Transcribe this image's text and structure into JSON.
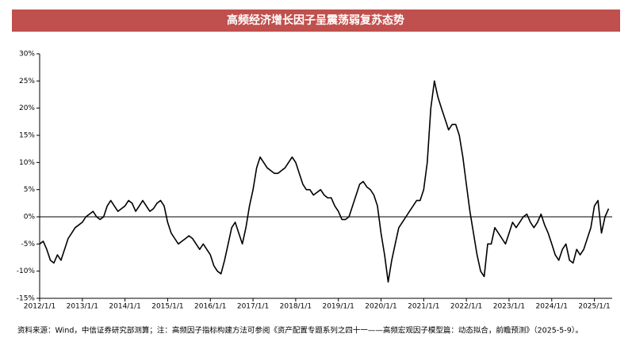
{
  "chart_data": {
    "type": "line",
    "title": "高频经济增长因子呈震荡弱复苏态势",
    "source": "资料来源：Wind，中信证券研究部测算；注：高频因子指标构建方法可参阅《资产配置专题系列之四十一——高频宏观因子模型篇：动态拟合，前瞻预测》（2025-5-9）。",
    "color": "#000000",
    "x": [
      "2012/1/1",
      "2012/2/1",
      "2012/3/1",
      "2012/4/1",
      "2012/5/1",
      "2012/6/1",
      "2012/7/1",
      "2012/8/1",
      "2012/9/1",
      "2012/10/1",
      "2012/11/1",
      "2012/12/1",
      "2013/1/1",
      "2013/2/1",
      "2013/3/1",
      "2013/4/1",
      "2013/5/1",
      "2013/6/1",
      "2013/7/1",
      "2013/8/1",
      "2013/9/1",
      "2013/10/1",
      "2013/11/1",
      "2013/12/1",
      "2014/1/1",
      "2014/2/1",
      "2014/3/1",
      "2014/4/1",
      "2014/5/1",
      "2014/6/1",
      "2014/7/1",
      "2014/8/1",
      "2014/9/1",
      "2014/10/1",
      "2014/11/1",
      "2014/12/1",
      "2015/1/1",
      "2015/2/1",
      "2015/3/1",
      "2015/4/1",
      "2015/5/1",
      "2015/6/1",
      "2015/7/1",
      "2015/8/1",
      "2015/9/1",
      "2015/10/1",
      "2015/11/1",
      "2015/12/1",
      "2016/1/1",
      "2016/2/1",
      "2016/3/1",
      "2016/4/1",
      "2016/5/1",
      "2016/6/1",
      "2016/7/1",
      "2016/8/1",
      "2016/9/1",
      "2016/10/1",
      "2016/11/1",
      "2016/12/1",
      "2017/1/1",
      "2017/2/1",
      "2017/3/1",
      "2017/4/1",
      "2017/5/1",
      "2017/6/1",
      "2017/7/1",
      "2017/8/1",
      "2017/9/1",
      "2017/10/1",
      "2017/11/1",
      "2017/12/1",
      "2018/1/1",
      "2018/2/1",
      "2018/3/1",
      "2018/4/1",
      "2018/5/1",
      "2018/6/1",
      "2018/7/1",
      "2018/8/1",
      "2018/9/1",
      "2018/10/1",
      "2018/11/1",
      "2018/12/1",
      "2019/1/1",
      "2019/2/1",
      "2019/3/1",
      "2019/4/1",
      "2019/5/1",
      "2019/6/1",
      "2019/7/1",
      "2019/8/1",
      "2019/9/1",
      "2019/10/1",
      "2019/11/1",
      "2019/12/1",
      "2020/1/1",
      "2020/2/1",
      "2020/3/1",
      "2020/4/1",
      "2020/5/1",
      "2020/6/1",
      "2020/7/1",
      "2020/8/1",
      "2020/9/1",
      "2020/10/1",
      "2020/11/1",
      "2020/12/1",
      "2021/1/1",
      "2021/2/1",
      "2021/3/1",
      "2021/4/1",
      "2021/5/1",
      "2021/6/1",
      "2021/7/1",
      "2021/8/1",
      "2021/9/1",
      "2021/10/1",
      "2021/11/1",
      "2021/12/1",
      "2022/1/1",
      "2022/2/1",
      "2022/3/1",
      "2022/4/1",
      "2022/5/1",
      "2022/6/1",
      "2022/7/1",
      "2022/8/1",
      "2022/9/1",
      "2022/10/1",
      "2022/11/1",
      "2022/12/1",
      "2023/1/1",
      "2023/2/1",
      "2023/3/1",
      "2023/4/1",
      "2023/5/1",
      "2023/6/1",
      "2023/7/1",
      "2023/8/1",
      "2023/9/1",
      "2023/10/1",
      "2023/11/1",
      "2023/12/1",
      "2024/1/1",
      "2024/2/1",
      "2024/3/1",
      "2024/4/1",
      "2024/5/1",
      "2024/6/1",
      "2024/7/1",
      "2024/8/1",
      "2024/9/1",
      "2024/10/1",
      "2024/11/1",
      "2024/12/1",
      "2025/1/1",
      "2025/2/1",
      "2025/3/1",
      "2025/4/1",
      "2025/5/1"
    ],
    "values": [
      -5,
      -4.5,
      -6,
      -8,
      -8.5,
      -7,
      -8,
      -6,
      -4,
      -3,
      -2,
      -1.5,
      -1,
      0,
      0.5,
      1,
      0,
      -0.5,
      0,
      2,
      3,
      2,
      1,
      1.5,
      2,
      3,
      2.5,
      1,
      2,
      3,
      2,
      1,
      1.5,
      2.5,
      3,
      2,
      -1,
      -3,
      -4,
      -5,
      -4.5,
      -4,
      -3.5,
      -4,
      -5,
      -6,
      -5,
      -6,
      -7,
      -9,
      -10,
      -10.5,
      -8,
      -5,
      -2,
      -1,
      -3,
      -5,
      -2,
      2,
      5,
      9,
      11,
      10,
      9,
      8.5,
      8,
      8,
      8.5,
      9,
      10,
      11,
      10,
      8,
      6,
      5,
      5,
      4,
      4.5,
      5,
      4,
      3.5,
      3.5,
      2,
      1,
      -0.5,
      -0.5,
      0,
      2,
      4,
      6,
      6.5,
      5.5,
      5,
      4,
      2,
      -3,
      -7,
      -12,
      -8,
      -5,
      -2,
      -1,
      0,
      1,
      2,
      3,
      3,
      5,
      10,
      20,
      25,
      22,
      20,
      18,
      16,
      17,
      17,
      15,
      11,
      6,
      1,
      -3,
      -7,
      -10,
      -11,
      -5,
      -5,
      -2,
      -3,
      -4,
      -5,
      -3,
      -1,
      -2,
      -1,
      0,
      0.5,
      -1,
      -2,
      -1,
      0.5,
      -1.5,
      -3,
      -5,
      -7,
      -8,
      -6,
      -5,
      -8,
      -8.5,
      -6,
      -7,
      -6,
      -4,
      -2,
      2,
      3,
      -3,
      0,
      1.5
    ],
    "xlim": [
      "2012/1/1",
      "2025/6/1"
    ],
    "xticks": [
      "2012/1/1",
      "2013/1/1",
      "2014/1/1",
      "2015/1/1",
      "2016/1/1",
      "2017/1/1",
      "2018/1/1",
      "2019/1/1",
      "2020/1/1",
      "2021/1/1",
      "2022/1/1",
      "2023/1/1",
      "2024/1/1",
      "2025/1/1"
    ],
    "ylim": [
      -15,
      30
    ],
    "yticks": [
      {
        "value": -15,
        "label": "-15%"
      },
      {
        "value": -10,
        "label": "-10%"
      },
      {
        "value": -5,
        "label": "-5%"
      },
      {
        "value": 0,
        "label": "0%"
      },
      {
        "value": 5,
        "label": "5%"
      },
      {
        "value": 10,
        "label": "10%"
      },
      {
        "value": 15,
        "label": "15%"
      },
      {
        "value": 20,
        "label": "20%"
      },
      {
        "value": 25,
        "label": "25%"
      },
      {
        "value": 30,
        "label": "30%"
      }
    ]
  }
}
